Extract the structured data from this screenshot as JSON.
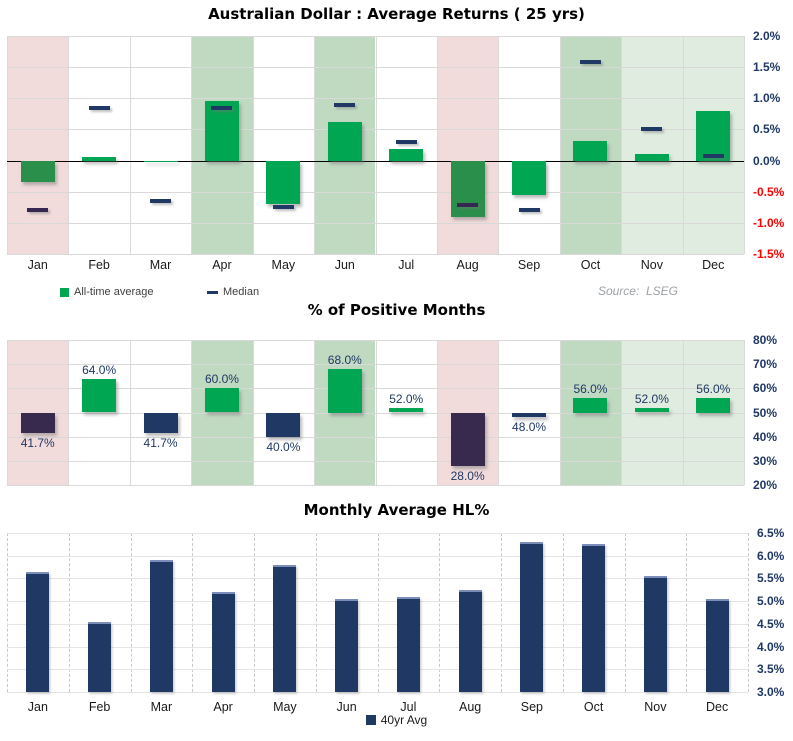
{
  "chart_data": [
    {
      "type": "bar",
      "title": "Australian Dollar : Average Returns ( 25 yrs)",
      "source": "Source:  LSEG",
      "categories": [
        "Jan",
        "Feb",
        "Mar",
        "Apr",
        "May",
        "Jun",
        "Jul",
        "Aug",
        "Sep",
        "Oct",
        "Nov",
        "Dec"
      ],
      "series": [
        {
          "name": "All-time average",
          "values": [
            -0.35,
            0.05,
            -0.03,
            0.95,
            -0.7,
            0.62,
            0.18,
            -0.9,
            -0.55,
            0.32,
            0.1,
            0.8
          ]
        },
        {
          "name": "Median",
          "values": [
            -0.8,
            0.85,
            -0.65,
            0.85,
            -0.75,
            0.9,
            0.3,
            -0.72,
            -0.8,
            1.58,
            0.5,
            0.08
          ]
        }
      ],
      "ylim": [
        -1.5,
        2.0
      ],
      "yticks": [
        {
          "v": 2.0,
          "t": "2.0%"
        },
        {
          "v": 1.5,
          "t": "1.5%"
        },
        {
          "v": 1.0,
          "t": "1.0%"
        },
        {
          "v": 0.5,
          "t": "0.5%"
        },
        {
          "v": 0.0,
          "t": "0.0%"
        },
        {
          "v": -0.5,
          "t": "-0.5%"
        },
        {
          "v": -1.0,
          "t": "-1.0%"
        },
        {
          "v": -1.5,
          "t": "-1.5%"
        }
      ],
      "column_shading": [
        "pink",
        "none",
        "none",
        "green",
        "none",
        "green",
        "none",
        "pink",
        "none",
        "green",
        "lightgreen",
        "lightgreen"
      ],
      "legend_position": "bottom-left",
      "grid": true
    },
    {
      "type": "bar",
      "title": "% of Positive Months",
      "categories": [
        "Jan",
        "Feb",
        "Mar",
        "Apr",
        "May",
        "Jun",
        "Jul",
        "Aug",
        "Sep",
        "Oct",
        "Nov",
        "Dec"
      ],
      "values": [
        41.7,
        64.0,
        41.7,
        60.0,
        40.0,
        68.0,
        52.0,
        28.0,
        48.0,
        56.0,
        52.0,
        56.0
      ],
      "value_labels": [
        "41.7%",
        "64.0%",
        "41.7%",
        "60.0%",
        "40.0%",
        "68.0%",
        "52.0%",
        "28.0%",
        "48.0%",
        "56.0%",
        "52.0%",
        "56.0%"
      ],
      "baseline": 50,
      "ylim": [
        20,
        80
      ],
      "yticks": [
        {
          "v": 80,
          "t": "80%"
        },
        {
          "v": 70,
          "t": "70%"
        },
        {
          "v": 60,
          "t": "60%"
        },
        {
          "v": 50,
          "t": "50%"
        },
        {
          "v": 40,
          "t": "40%"
        },
        {
          "v": 30,
          "t": "30%"
        },
        {
          "v": 20,
          "t": "20%"
        }
      ],
      "column_shading": [
        "pink",
        "none",
        "none",
        "green",
        "none",
        "green",
        "none",
        "pink",
        "none",
        "green",
        "lightgreen",
        "lightgreen"
      ],
      "grid": true
    },
    {
      "type": "bar",
      "title": "Monthly Average HL%",
      "legend": "40yr Avg",
      "categories": [
        "Jan",
        "Feb",
        "Mar",
        "Apr",
        "May",
        "Jun",
        "Jul",
        "Aug",
        "Sep",
        "Oct",
        "Nov",
        "Dec"
      ],
      "values": [
        5.65,
        4.55,
        5.9,
        5.2,
        5.8,
        5.05,
        5.1,
        5.25,
        6.3,
        6.25,
        5.55,
        5.05
      ],
      "ylim": [
        3.0,
        6.5
      ],
      "yticks": [
        {
          "v": 6.5,
          "t": "6.5%"
        },
        {
          "v": 6.0,
          "t": "6.0%"
        },
        {
          "v": 5.5,
          "t": "5.5%"
        },
        {
          "v": 5.0,
          "t": "5.0%"
        },
        {
          "v": 4.5,
          "t": "4.5%"
        },
        {
          "v": 4.0,
          "t": "4.0%"
        },
        {
          "v": 3.5,
          "t": "3.5%"
        },
        {
          "v": 3.0,
          "t": "3.0%"
        }
      ],
      "grid": true
    }
  ],
  "colors": {
    "green_bar": "#00A651",
    "green_bar_on_pink": "#2A8F4B",
    "navy_bar": "#1F3864",
    "navy_bar_on_pink": "#38294E",
    "median_navy": "#1F3864",
    "median_on_pink": "#352750",
    "bg_pink": "#F2DBDB",
    "bg_green": "#C0DAC2",
    "bg_lightgreen": "#DFECDF",
    "grid_line": "#D9D9D9",
    "grid_line_light": "#E4E4E4",
    "zero_line": "#000000",
    "tick_navy": "#1F3864",
    "tick_red": "#FF0000",
    "bar_top_cap": "#7B8DB8"
  }
}
